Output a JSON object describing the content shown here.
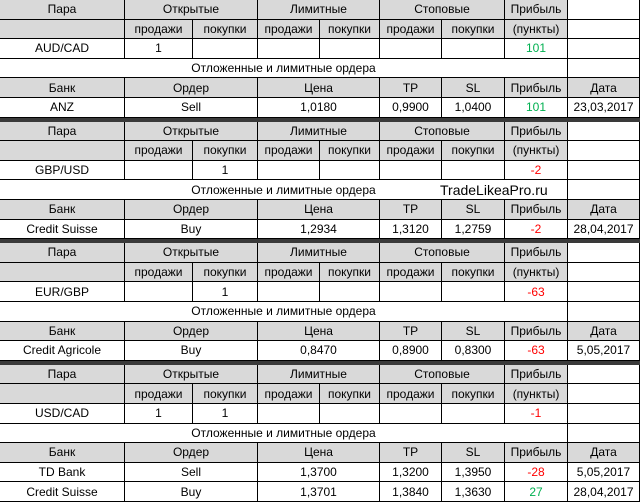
{
  "headers": {
    "pair": "Пара",
    "open": "Открытые",
    "limit": "Лимитные",
    "stop": "Стоповые",
    "profit": "Прибыль",
    "sell": "продажи",
    "buy": "покупки",
    "points": "(пункты)",
    "pending": "Отложенные и лимитные ордера",
    "bank": "Банк",
    "order": "Ордер",
    "price": "Цена",
    "tp": "TP",
    "sl": "SL",
    "date": "Дата"
  },
  "watermark": "TradeLikeaPro.ru",
  "blocks": [
    {
      "pair": "AUD/CAD",
      "open_sell": 1,
      "profit": 101,
      "orders": [
        {
          "bank": "ANZ",
          "order": "Sell",
          "price": "1,0180",
          "tp": "0,9900",
          "sl": "1,0400",
          "profit": 101,
          "date": "23,03,2017"
        }
      ]
    },
    {
      "pair": "GBP/USD",
      "open_buy": 1,
      "profit": -2,
      "orders": [
        {
          "bank": "Credit Suisse",
          "order": "Buy",
          "price": "1,2934",
          "tp": "1,3120",
          "sl": "1,2759",
          "profit": -2,
          "date": "28,04,2017"
        }
      ]
    },
    {
      "pair": "EUR/GBP",
      "open_buy": 1,
      "profit": -63,
      "orders": [
        {
          "bank": "Credit Agricole",
          "order": "Buy",
          "price": "0,8470",
          "tp": "0,8900",
          "sl": "0,8300",
          "profit": -63,
          "date": "5,05,2017"
        }
      ]
    },
    {
      "pair": "USD/CAD",
      "open_sell": 1,
      "open_buy": 1,
      "profit": -1,
      "orders": [
        {
          "bank": "TD Bank",
          "order": "Sell",
          "price": "1,3700",
          "tp": "1,3200",
          "sl": "1,3950",
          "profit": -28,
          "date": "5,05,2017"
        },
        {
          "bank": "Credit Suisse",
          "order": "Buy",
          "price": "1,3701",
          "tp": "1,3840",
          "sl": "1,3630",
          "profit": 27,
          "date": "28,04,2017"
        }
      ]
    }
  ]
}
